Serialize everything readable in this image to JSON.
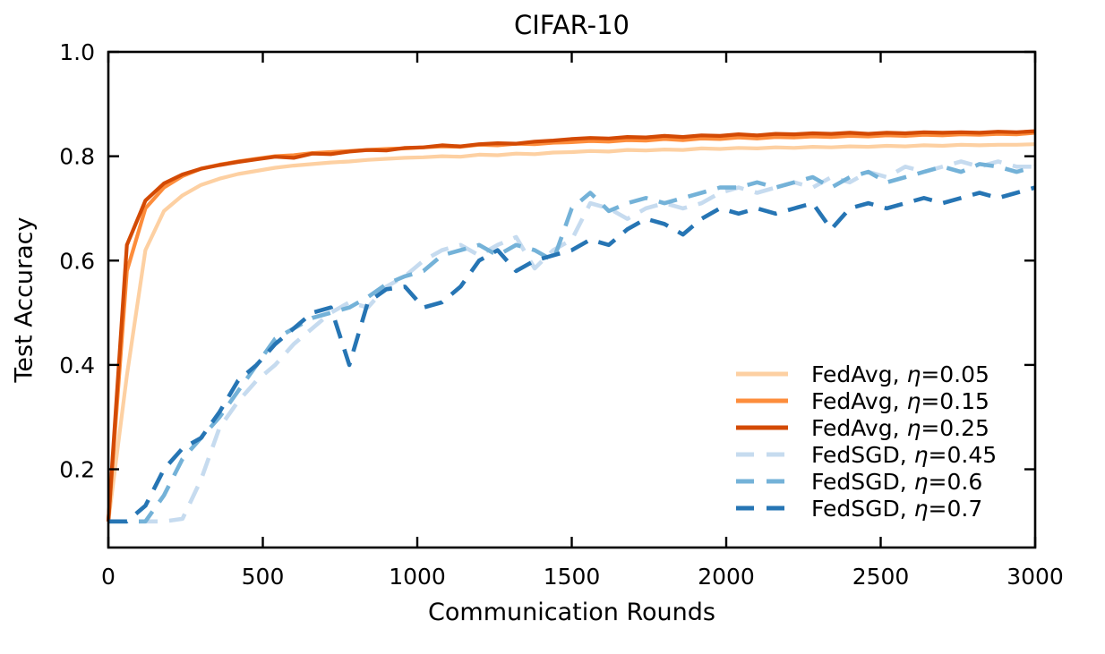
{
  "figure_title": "CIFAR-10",
  "chart_data": {
    "type": "line",
    "title": "CIFAR-10",
    "xlabel": "Communication Rounds",
    "ylabel": "Test Accuracy",
    "xlim": [
      0,
      3000
    ],
    "ylim": [
      0.05,
      1.0
    ],
    "grid": false,
    "legend_position": "lower right",
    "x_ticks": [
      0,
      500,
      1000,
      1500,
      2000,
      2500,
      3000
    ],
    "x_tick_labels": [
      "0",
      "500",
      "1000",
      "1500",
      "2000",
      "2500",
      "3000"
    ],
    "y_ticks": [
      0.2,
      0.4,
      0.6,
      0.8,
      1.0
    ],
    "y_tick_labels": [
      "0.2",
      "0.4",
      "0.6",
      "0.8",
      "1.0"
    ],
    "x_start": 0,
    "x_step": 60,
    "series": [
      {
        "key": "fedavg-eta-0.05",
        "label": "FedAvg, η=0.05",
        "color": "#fdd0a2",
        "style": "solid",
        "values": [
          0.1,
          0.38,
          0.62,
          0.695,
          0.725,
          0.745,
          0.757,
          0.766,
          0.772,
          0.778,
          0.782,
          0.785,
          0.788,
          0.79,
          0.793,
          0.795,
          0.797,
          0.798,
          0.8,
          0.799,
          0.803,
          0.802,
          0.805,
          0.804,
          0.807,
          0.808,
          0.81,
          0.809,
          0.812,
          0.811,
          0.813,
          0.812,
          0.815,
          0.814,
          0.816,
          0.815,
          0.817,
          0.816,
          0.818,
          0.817,
          0.819,
          0.818,
          0.82,
          0.819,
          0.821,
          0.82,
          0.822,
          0.821,
          0.822,
          0.822,
          0.823
        ]
      },
      {
        "key": "fedavg-eta-0.15",
        "label": "FedAvg, η=0.15",
        "color": "#fd8d3c",
        "style": "solid",
        "values": [
          0.1,
          0.58,
          0.7,
          0.74,
          0.762,
          0.776,
          0.784,
          0.79,
          0.795,
          0.8,
          0.802,
          0.806,
          0.808,
          0.81,
          0.812,
          0.814,
          0.815,
          0.817,
          0.819,
          0.818,
          0.822,
          0.821,
          0.824,
          0.823,
          0.826,
          0.827,
          0.829,
          0.828,
          0.831,
          0.83,
          0.833,
          0.831,
          0.834,
          0.833,
          0.836,
          0.834,
          0.837,
          0.836,
          0.838,
          0.837,
          0.839,
          0.838,
          0.84,
          0.839,
          0.841,
          0.84,
          0.842,
          0.841,
          0.843,
          0.842,
          0.845
        ]
      },
      {
        "key": "fedavg-eta-0.25",
        "label": "FedAvg, η=0.25",
        "color": "#d34a04",
        "style": "solid",
        "values": [
          0.1,
          0.63,
          0.715,
          0.748,
          0.765,
          0.776,
          0.783,
          0.789,
          0.794,
          0.799,
          0.797,
          0.805,
          0.804,
          0.809,
          0.812,
          0.811,
          0.816,
          0.817,
          0.821,
          0.819,
          0.823,
          0.825,
          0.824,
          0.828,
          0.83,
          0.833,
          0.835,
          0.834,
          0.837,
          0.836,
          0.839,
          0.837,
          0.84,
          0.839,
          0.842,
          0.84,
          0.843,
          0.842,
          0.844,
          0.843,
          0.845,
          0.843,
          0.845,
          0.844,
          0.846,
          0.845,
          0.846,
          0.845,
          0.847,
          0.846,
          0.848
        ]
      },
      {
        "key": "fedsgd-eta-0.45",
        "label": "FedSGD, η=0.45",
        "color": "#c6dbef",
        "style": "dashed",
        "values": [
          0.1,
          0.1,
          0.1,
          0.1,
          0.105,
          0.18,
          0.28,
          0.33,
          0.37,
          0.4,
          0.44,
          0.47,
          0.5,
          0.52,
          0.51,
          0.55,
          0.57,
          0.6,
          0.62,
          0.63,
          0.61,
          0.63,
          0.645,
          0.585,
          0.62,
          0.64,
          0.71,
          0.7,
          0.68,
          0.7,
          0.71,
          0.7,
          0.71,
          0.73,
          0.74,
          0.73,
          0.74,
          0.75,
          0.74,
          0.76,
          0.75,
          0.77,
          0.76,
          0.78,
          0.77,
          0.78,
          0.79,
          0.78,
          0.79,
          0.78,
          0.78
        ]
      },
      {
        "key": "fedsgd-eta-0.6",
        "label": "FedSGD, η=0.6",
        "color": "#74b2d8",
        "style": "dashed",
        "values": [
          0.1,
          0.1,
          0.1,
          0.15,
          0.22,
          0.26,
          0.3,
          0.35,
          0.4,
          0.45,
          0.47,
          0.49,
          0.5,
          0.51,
          0.53,
          0.555,
          0.57,
          0.58,
          0.61,
          0.62,
          0.63,
          0.61,
          0.63,
          0.62,
          0.6,
          0.7,
          0.73,
          0.695,
          0.71,
          0.72,
          0.71,
          0.72,
          0.73,
          0.74,
          0.74,
          0.75,
          0.74,
          0.75,
          0.76,
          0.74,
          0.76,
          0.77,
          0.75,
          0.76,
          0.77,
          0.78,
          0.77,
          0.785,
          0.78,
          0.77,
          0.78
        ]
      },
      {
        "key": "fedsgd-eta-0.7",
        "label": "FedSGD, η=0.7",
        "color": "#2675b4",
        "style": "dashed",
        "values": [
          0.1,
          0.1,
          0.13,
          0.2,
          0.24,
          0.26,
          0.31,
          0.37,
          0.4,
          0.44,
          0.47,
          0.5,
          0.51,
          0.4,
          0.52,
          0.545,
          0.55,
          0.51,
          0.52,
          0.55,
          0.6,
          0.62,
          0.58,
          0.6,
          0.61,
          0.62,
          0.64,
          0.63,
          0.66,
          0.68,
          0.67,
          0.65,
          0.68,
          0.7,
          0.69,
          0.7,
          0.69,
          0.7,
          0.71,
          0.66,
          0.7,
          0.71,
          0.7,
          0.71,
          0.72,
          0.71,
          0.72,
          0.73,
          0.72,
          0.73,
          0.74
        ]
      }
    ],
    "axis_color": "#000000"
  }
}
